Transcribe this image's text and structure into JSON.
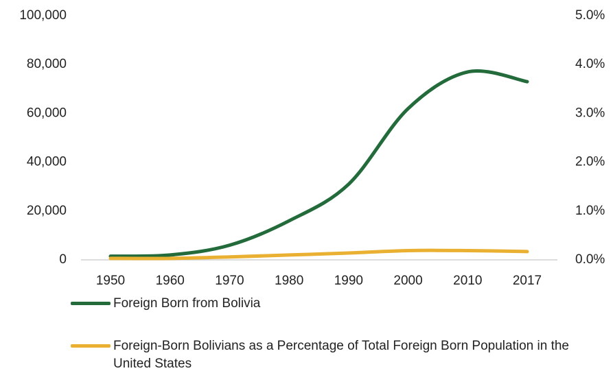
{
  "chart_data": {
    "type": "line",
    "categories": [
      "1950",
      "1960",
      "1970",
      "1980",
      "1990",
      "2000",
      "2010",
      "2017"
    ],
    "series": [
      {
        "name": "Foreign Born from Bolivia",
        "color": "#236b3b",
        "values": [
          1500,
          2000,
          6000,
          16000,
          31000,
          62000,
          77000,
          73000
        ]
      },
      {
        "name": "Foreign-Born Bolivians as a Percentage of Total Foreign Born Population in the United States",
        "color": "#e9b032",
        "axis": "y2",
        "values": [
          0.03,
          0.03,
          0.06,
          0.1,
          0.14,
          0.19,
          0.19,
          0.17
        ]
      }
    ],
    "ylim": [
      0,
      100000
    ],
    "yticks": [
      0,
      {
        "value": 20000,
        "label": "20,000"
      },
      {
        "value": 40000,
        "label": "40,000"
      },
      {
        "value": 60000,
        "label": "60,000"
      },
      {
        "value": 80000,
        "label": "80,000"
      },
      {
        "value": 100000,
        "label": "100,000"
      }
    ],
    "y2lim": [
      0,
      5
    ],
    "y2ticks": [
      {
        "value": 0,
        "label": "0.0%"
      },
      {
        "value": 1,
        "label": "1.0%"
      },
      {
        "value": 2,
        "label": "2.0%"
      },
      {
        "value": 3,
        "label": "3.0%"
      },
      {
        "value": 4,
        "label": "4.0%"
      },
      {
        "value": 5,
        "label": "5.0%"
      }
    ],
    "grid": false
  }
}
